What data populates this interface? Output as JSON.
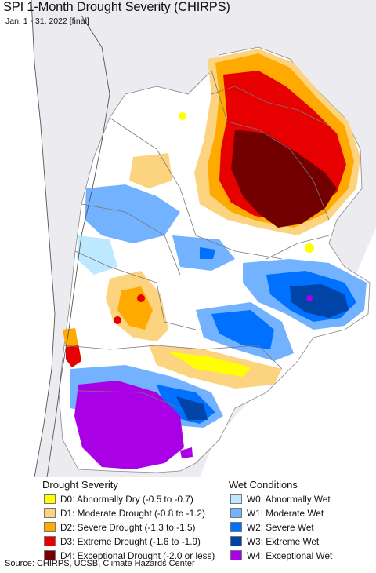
{
  "header": {
    "title": "SPI 1-Month Drought Severity (CHIRPS)",
    "subtitle": "Jan. 1 - 31, 2022 [final]"
  },
  "colors": {
    "background": "#ecebf0",
    "ocean": "#ffffff",
    "border": "#777777",
    "d0": "#ffff00",
    "d1": "#fcd37f",
    "d2": "#ffaa00",
    "d3": "#e60000",
    "d4": "#730000",
    "w0": "#bee8ff",
    "w1": "#73b2ff",
    "w2": "#0070ff",
    "w3": "#0044a8",
    "w4": "#aa00e6"
  },
  "legend": {
    "drought_title": "Drought Severity",
    "wet_title": "Wet Conditions",
    "drought": [
      {
        "label": "D0: Abnormally Dry (-0.5 to -0.7)",
        "color": "#ffff00"
      },
      {
        "label": "D1: Moderate Drought (-0.8 to -1.2)",
        "color": "#fcd37f"
      },
      {
        "label": "D2: Severe Drought (-1.3 to -1.5)",
        "color": "#ffaa00"
      },
      {
        "label": "D3: Extreme Drought (-1.6 to -1.9)",
        "color": "#e60000"
      },
      {
        "label": "D4: Exceptional Drought (-2.0 or less)",
        "color": "#730000"
      }
    ],
    "wet": [
      {
        "label": "W0: Abnormally Wet",
        "color": "#bee8ff"
      },
      {
        "label": "W1: Moderate Wet",
        "color": "#73b2ff"
      },
      {
        "label": "W2: Severe Wet",
        "color": "#0070ff"
      },
      {
        "label": "W3: Extreme Wet",
        "color": "#0044a8"
      },
      {
        "label": "W4: Exceptional Wet",
        "color": "#aa00e6"
      }
    ]
  },
  "footer": {
    "source": "Source: CHIRPS, UCSB, Climate Hazards Center"
  }
}
